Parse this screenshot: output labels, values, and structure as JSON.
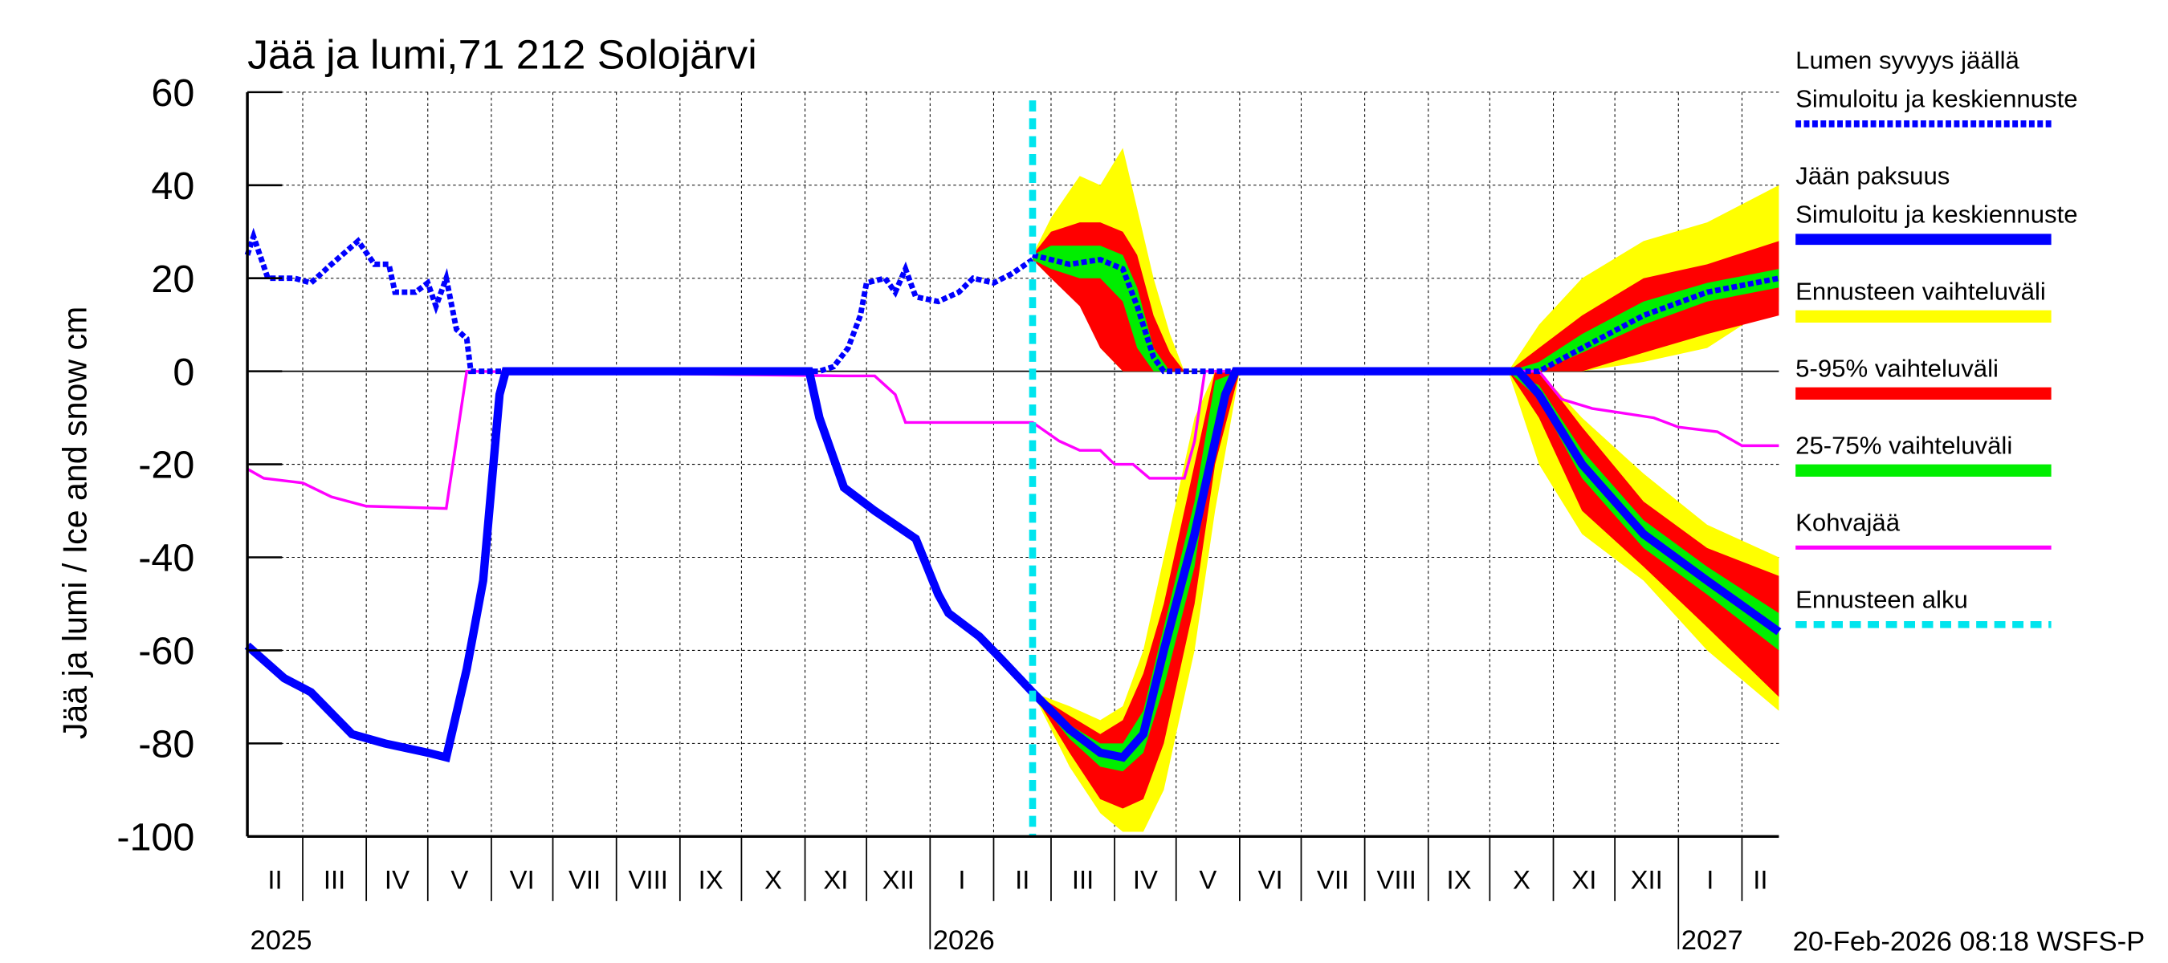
{
  "chart_data": {
    "type": "line",
    "title": "Jää ja lumi,71 212 Solojärvi",
    "ylabel": "Jää ja lumi / Ice and snow    cm",
    "ylim": [
      -100,
      60
    ],
    "yticks": [
      60,
      40,
      20,
      0,
      -20,
      -40,
      -60,
      -80,
      -100
    ],
    "xlim": [
      "2025-02-02",
      "2027-02-19"
    ],
    "grid": true,
    "legend_placement": "right",
    "month_labels": [
      "II",
      "III",
      "IV",
      "V",
      "VI",
      "VII",
      "VIII",
      "IX",
      "X",
      "XI",
      "XII",
      "I",
      "II",
      "III",
      "IV",
      "V",
      "VI",
      "VII",
      "VIII",
      "IX",
      "X",
      "XI",
      "XII",
      "I",
      "II"
    ],
    "year_labels": [
      "2025",
      "2026",
      "2027"
    ],
    "forecast_start": "2026-02-20",
    "timestamp": "20-Feb-2026 08:18 WSFS-P",
    "colors": {
      "snow": "#0000ff",
      "ice": "#0000ff",
      "yellow": "#ffff00",
      "red": "#ff0000",
      "green": "#00ee00",
      "slush": "#ff00ff",
      "forecast_start": "#00e5ee"
    },
    "legend": [
      {
        "label": "Lumen syvyys jäällä",
        "label2": "Simuloitu ja keskiennuste",
        "style": "snow"
      },
      {
        "label": "Jään paksuus",
        "label2": "Simuloitu ja keskiennuste",
        "style": "ice"
      },
      {
        "label": "Ennusteen vaihteluväli",
        "style": "yellow"
      },
      {
        "label": "5-95% vaihteluväli",
        "style": "red"
      },
      {
        "label": "25-75% vaihteluväli",
        "style": "green"
      },
      {
        "label": "Kohvajää",
        "style": "slush"
      },
      {
        "label": "Ennusteen alku",
        "style": "forecast_start"
      }
    ],
    "series": {
      "snow_depth": [
        [
          "2025-02-02",
          25
        ],
        [
          "2025-02-05",
          29
        ],
        [
          "2025-02-12",
          20
        ],
        [
          "2025-02-25",
          20
        ],
        [
          "2025-03-05",
          19
        ],
        [
          "2025-03-15",
          23
        ],
        [
          "2025-03-28",
          28
        ],
        [
          "2025-04-05",
          23
        ],
        [
          "2025-04-12",
          23
        ],
        [
          "2025-04-15",
          17
        ],
        [
          "2025-04-25",
          17
        ],
        [
          "2025-05-01",
          19
        ],
        [
          "2025-05-05",
          14
        ],
        [
          "2025-05-10",
          20
        ],
        [
          "2025-05-15",
          9
        ],
        [
          "2025-05-20",
          7
        ],
        [
          "2025-05-22",
          0
        ],
        [
          "2025-11-08",
          0
        ],
        [
          "2025-11-15",
          1
        ],
        [
          "2025-11-22",
          5
        ],
        [
          "2025-11-28",
          12
        ],
        [
          "2025-12-01",
          19
        ],
        [
          "2025-12-10",
          20
        ],
        [
          "2025-12-15",
          17
        ],
        [
          "2025-12-20",
          22
        ],
        [
          "2025-12-25",
          16
        ],
        [
          "2026-01-05",
          15
        ],
        [
          "2026-01-15",
          17
        ],
        [
          "2026-01-22",
          20
        ],
        [
          "2026-02-01",
          19
        ],
        [
          "2026-02-10",
          21
        ],
        [
          "2026-02-20",
          24
        ]
      ],
      "snow_forecast": [
        [
          "2026-02-20",
          25
        ],
        [
          "2026-03-10",
          23
        ],
        [
          "2026-03-25",
          24
        ],
        [
          "2026-04-05",
          22
        ],
        [
          "2026-04-12",
          14
        ],
        [
          "2026-04-20",
          3
        ],
        [
          "2026-04-25",
          0
        ],
        [
          "2026-10-25",
          0
        ],
        [
          "2026-11-15",
          5
        ],
        [
          "2026-12-15",
          12
        ],
        [
          "2027-01-15",
          17
        ],
        [
          "2027-02-19",
          20
        ]
      ],
      "ice_thickness": [
        [
          "2025-02-02",
          -59
        ],
        [
          "2025-02-20",
          -66
        ],
        [
          "2025-03-05",
          -69
        ],
        [
          "2025-03-25",
          -78
        ],
        [
          "2025-04-10",
          -80
        ],
        [
          "2025-05-01",
          -82
        ],
        [
          "2025-05-10",
          -83
        ],
        [
          "2025-05-20",
          -64
        ],
        [
          "2025-05-28",
          -45
        ],
        [
          "2025-06-05",
          -5
        ],
        [
          "2025-06-08",
          0
        ],
        [
          "2025-11-03",
          0
        ],
        [
          "2025-11-08",
          -10
        ],
        [
          "2025-11-20",
          -25
        ],
        [
          "2025-12-05",
          -30
        ],
        [
          "2025-12-25",
          -36
        ],
        [
          "2026-01-05",
          -48
        ],
        [
          "2026-01-10",
          -52
        ],
        [
          "2026-01-25",
          -57
        ],
        [
          "2026-02-05",
          -62
        ],
        [
          "2026-02-20",
          -69
        ]
      ],
      "ice_forecast": [
        [
          "2026-02-20",
          -69
        ],
        [
          "2026-03-10",
          -77
        ],
        [
          "2026-03-25",
          -82
        ],
        [
          "2026-04-05",
          -83
        ],
        [
          "2026-04-15",
          -78
        ],
        [
          "2026-04-25",
          -60
        ],
        [
          "2026-05-10",
          -35
        ],
        [
          "2026-05-25",
          -5
        ],
        [
          "2026-05-30",
          0
        ],
        [
          "2026-10-15",
          0
        ],
        [
          "2026-10-25",
          -5
        ],
        [
          "2026-11-15",
          -20
        ],
        [
          "2026-12-15",
          -35
        ],
        [
          "2027-01-15",
          -45
        ],
        [
          "2027-02-19",
          -56
        ]
      ],
      "slush_ice": [
        [
          "2025-02-02",
          -21
        ],
        [
          "2025-02-10",
          -23
        ],
        [
          "2025-03-01",
          -24
        ],
        [
          "2025-03-15",
          -27
        ],
        [
          "2025-04-01",
          -29
        ],
        [
          "2025-05-10",
          -29.5
        ],
        [
          "2025-05-20",
          0
        ],
        [
          "2025-11-20",
          -1
        ],
        [
          "2025-12-05",
          -1
        ],
        [
          "2025-12-15",
          -5
        ],
        [
          "2025-12-20",
          -11
        ],
        [
          "2026-02-20",
          -11
        ],
        [
          "2026-03-05",
          -15
        ],
        [
          "2026-03-15",
          -17
        ],
        [
          "2026-03-25",
          -17
        ],
        [
          "2026-04-01",
          -20
        ],
        [
          "2026-04-10",
          -20
        ],
        [
          "2026-04-18",
          -23
        ],
        [
          "2026-05-05",
          -23
        ],
        [
          "2026-05-10",
          -15
        ],
        [
          "2026-05-15",
          0
        ],
        [
          "2026-10-25",
          0
        ],
        [
          "2026-11-05",
          -6
        ],
        [
          "2026-11-20",
          -8
        ],
        [
          "2026-12-05",
          -9
        ],
        [
          "2026-12-20",
          -10
        ],
        [
          "2027-01-01",
          -12
        ],
        [
          "2027-01-20",
          -13
        ],
        [
          "2027-02-01",
          -16
        ],
        [
          "2027-02-19",
          -16
        ]
      ]
    },
    "bands": [
      {
        "dates": [
          "2026-02-20",
          "2026-03-10",
          "2026-03-25",
          "2026-04-05",
          "2026-04-15",
          "2026-04-25",
          "2026-05-10",
          "2026-05-20",
          "2026-06-01"
        ],
        "yellow": {
          "lo": [
            -69,
            -85,
            -95,
            -99,
            -99,
            -90,
            -60,
            -30,
            0
          ],
          "hi": [
            -69,
            -72,
            -75,
            -72,
            -60,
            -40,
            -10,
            0,
            0
          ]
        },
        "red": {
          "lo": [
            -69,
            -82,
            -92,
            -94,
            -92,
            -80,
            -50,
            -20,
            0
          ],
          "hi": [
            -69,
            -74,
            -78,
            -75,
            -65,
            -50,
            -20,
            0,
            0
          ]
        },
        "green": {
          "lo": [
            -69,
            -79,
            -85,
            -86,
            -82,
            -68,
            -42,
            -12,
            0
          ],
          "hi": [
            -69,
            -76,
            -80,
            -80,
            -73,
            -55,
            -28,
            -2,
            0
          ]
        }
      },
      {
        "dates": [
          "2026-02-20",
          "2026-03-01",
          "2026-03-15",
          "2026-03-25",
          "2026-04-05",
          "2026-04-12",
          "2026-04-20",
          "2026-04-28",
          "2026-05-05"
        ],
        "yellow": {
          "lo": [
            24,
            20,
            15,
            5,
            0,
            0,
            0,
            0,
            0
          ],
          "hi": [
            25,
            33,
            42,
            40,
            48,
            35,
            20,
            8,
            0
          ]
        },
        "red": {
          "lo": [
            24,
            20,
            14,
            5,
            0,
            0,
            0,
            0,
            0
          ],
          "hi": [
            25,
            30,
            32,
            32,
            30,
            25,
            12,
            4,
            0
          ]
        },
        "green": {
          "lo": [
            24,
            22,
            20,
            20,
            15,
            5,
            0,
            0,
            0
          ],
          "hi": [
            25,
            27,
            27,
            27,
            25,
            18,
            5,
            0,
            0
          ]
        }
      },
      {
        "dates": [
          "2026-10-10",
          "2026-10-25",
          "2026-11-15",
          "2026-12-15",
          "2027-01-15",
          "2027-02-19"
        ],
        "yellow": {
          "lo": [
            0,
            -20,
            -35,
            -45,
            -60,
            -73
          ],
          "hi": [
            0,
            0,
            -10,
            -22,
            -33,
            -40
          ]
        },
        "red": {
          "lo": [
            0,
            -10,
            -30,
            -42,
            -55,
            -70
          ],
          "hi": [
            0,
            0,
            -12,
            -28,
            -38,
            -44
          ]
        },
        "green": {
          "lo": [
            0,
            -6,
            -23,
            -38,
            -48,
            -60
          ],
          "hi": [
            0,
            -3,
            -17,
            -32,
            -42,
            -52
          ]
        }
      },
      {
        "dates": [
          "2026-10-10",
          "2026-10-25",
          "2026-11-15",
          "2026-12-15",
          "2027-01-15",
          "2027-02-19"
        ],
        "yellow": {
          "lo": [
            0,
            0,
            0,
            2,
            5,
            15
          ],
          "hi": [
            0,
            10,
            20,
            28,
            32,
            40
          ]
        },
        "red": {
          "lo": [
            0,
            0,
            0,
            4,
            8,
            12
          ],
          "hi": [
            0,
            5,
            12,
            20,
            23,
            28
          ]
        },
        "green": {
          "lo": [
            0,
            0,
            4,
            10,
            15,
            18
          ],
          "hi": [
            0,
            2,
            8,
            15,
            19,
            22
          ]
        }
      }
    ]
  }
}
